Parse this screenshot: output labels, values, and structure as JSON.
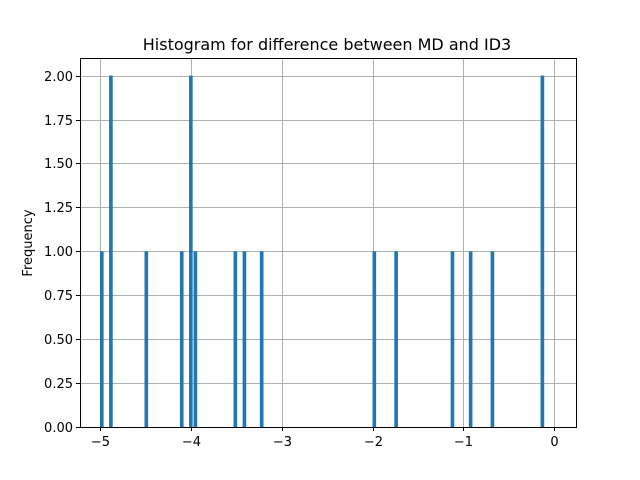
{
  "chart_data": {
    "type": "bar",
    "title": "Histogram for difference between MD and ID3",
    "xlabel": "",
    "ylabel": "Frequency",
    "xlim": [
      -5.22,
      0.24
    ],
    "ylim": [
      0,
      2.1
    ],
    "bar_width": 0.04,
    "bar_color": "#1f77b4",
    "grid": true,
    "x_ticks": [
      -5,
      -4,
      -3,
      -2,
      -1,
      0
    ],
    "x_tick_labels": [
      "−5",
      "−4",
      "−3",
      "−2",
      "−1",
      "0"
    ],
    "y_ticks": [
      0,
      0.25,
      0.5,
      0.75,
      1.0,
      1.25,
      1.5,
      1.75,
      2.0
    ],
    "y_tick_labels": [
      "0.00",
      "0.25",
      "0.50",
      "0.75",
      "1.00",
      "1.25",
      "1.50",
      "1.75",
      "2.00"
    ],
    "bars": [
      {
        "x": -4.98,
        "value": 1
      },
      {
        "x": -4.88,
        "value": 2
      },
      {
        "x": -4.49,
        "value": 1
      },
      {
        "x": -4.1,
        "value": 1
      },
      {
        "x": -4.0,
        "value": 2
      },
      {
        "x": -3.95,
        "value": 1
      },
      {
        "x": -3.51,
        "value": 1
      },
      {
        "x": -3.41,
        "value": 1
      },
      {
        "x": -3.22,
        "value": 1
      },
      {
        "x": -1.98,
        "value": 1
      },
      {
        "x": -1.74,
        "value": 1
      },
      {
        "x": -1.12,
        "value": 1
      },
      {
        "x": -0.92,
        "value": 1
      },
      {
        "x": -0.68,
        "value": 1
      },
      {
        "x": -0.13,
        "value": 2
      }
    ]
  }
}
